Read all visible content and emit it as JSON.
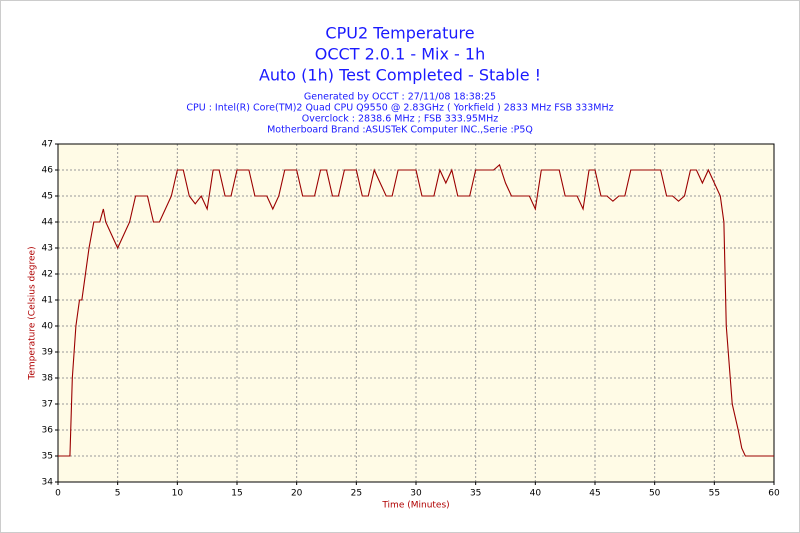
{
  "chart_data": {
    "type": "line",
    "title": [
      "CPU2 Temperature",
      "OCCT 2.0.1 - Mix - 1h",
      "Auto (1h) Test Completed - Stable !"
    ],
    "subtitle": [
      "Generated by OCCT : 27/11/08 18:38:25",
      "CPU : Intel(R) Core(TM)2 Quad CPU Q9550 @ 2.83GHz ( Yorkfield ) 2833 MHz FSB 333MHz",
      "Overclock : 2838.6 MHz ; FSB 333.95MHz",
      "Motherboard Brand :ASUSTeK Computer INC.,Serie :P5Q"
    ],
    "xlabel": "Time (Minutes)",
    "ylabel": "Temperature (Celsius degree)",
    "x": [
      0,
      0.5,
      1,
      1.2,
      1.5,
      1.8,
      2,
      2.3,
      2.6,
      3,
      3.5,
      3.8,
      4,
      4.5,
      5,
      5.5,
      6,
      6.5,
      7,
      7.5,
      8,
      8.5,
      9,
      9.5,
      10,
      10.5,
      11,
      11.5,
      12,
      12.5,
      13,
      13.5,
      14,
      14.5,
      15,
      15.5,
      16,
      16.5,
      17,
      17.5,
      18,
      18.5,
      19,
      19.5,
      20,
      20.5,
      21,
      21.5,
      22,
      22.5,
      23,
      23.5,
      24,
      24.5,
      25,
      25.5,
      26,
      26.5,
      27,
      27.5,
      28,
      28.5,
      29,
      29.5,
      30,
      30.5,
      31,
      31.5,
      32,
      32.5,
      33,
      33.5,
      34,
      34.5,
      35,
      35.5,
      36,
      36.5,
      37,
      37.5,
      38,
      38.5,
      39,
      39.5,
      40,
      40.5,
      41,
      41.5,
      42,
      42.5,
      43,
      43.5,
      44,
      44.5,
      45,
      45.5,
      46,
      46.5,
      47,
      47.5,
      48,
      48.5,
      49,
      49.5,
      50,
      50.5,
      51,
      51.5,
      52,
      52.5,
      53,
      53.5,
      54,
      54.5,
      55,
      55.5,
      55.8,
      56,
      56.5,
      57,
      57.3,
      57.6,
      58,
      59,
      60
    ],
    "series": [
      {
        "name": "CPU2",
        "color": "#9b0000",
        "values": [
          35,
          35,
          35,
          38,
          40,
          41,
          41,
          42,
          43,
          44,
          44,
          44.5,
          44,
          43.5,
          43,
          43.5,
          44,
          45,
          45,
          45,
          44,
          44,
          44.5,
          45,
          46,
          46,
          45,
          44.7,
          45,
          44.5,
          46,
          46,
          45,
          45,
          46,
          46,
          46,
          45,
          45,
          45,
          44.5,
          45,
          46,
          46,
          46,
          45,
          45,
          45,
          46,
          46,
          45,
          45,
          46,
          46,
          46,
          45,
          45,
          46,
          45.5,
          45,
          45,
          46,
          46,
          46,
          46,
          45,
          45,
          45,
          46,
          45.5,
          46,
          45,
          45,
          45,
          46,
          46,
          46,
          46,
          46.2,
          45.5,
          45,
          45,
          45,
          45,
          44.5,
          46,
          46,
          46,
          46,
          45,
          45,
          45,
          44.5,
          46,
          46,
          45,
          45,
          44.8,
          45,
          45,
          46,
          46,
          46,
          46,
          46,
          46,
          45,
          45,
          44.8,
          45,
          46,
          46,
          45.5,
          46,
          45.5,
          45,
          44,
          40,
          37,
          36,
          35.3,
          35,
          35,
          35,
          35
        ]
      }
    ],
    "xlim": [
      0,
      60
    ],
    "xticks": [
      0,
      5,
      10,
      15,
      20,
      25,
      30,
      35,
      40,
      45,
      50,
      55,
      60
    ],
    "ylim": [
      34,
      47
    ],
    "yticks": [
      34,
      35,
      36,
      37,
      38,
      39,
      40,
      41,
      42,
      43,
      44,
      45,
      46,
      47
    ],
    "grid": true
  }
}
